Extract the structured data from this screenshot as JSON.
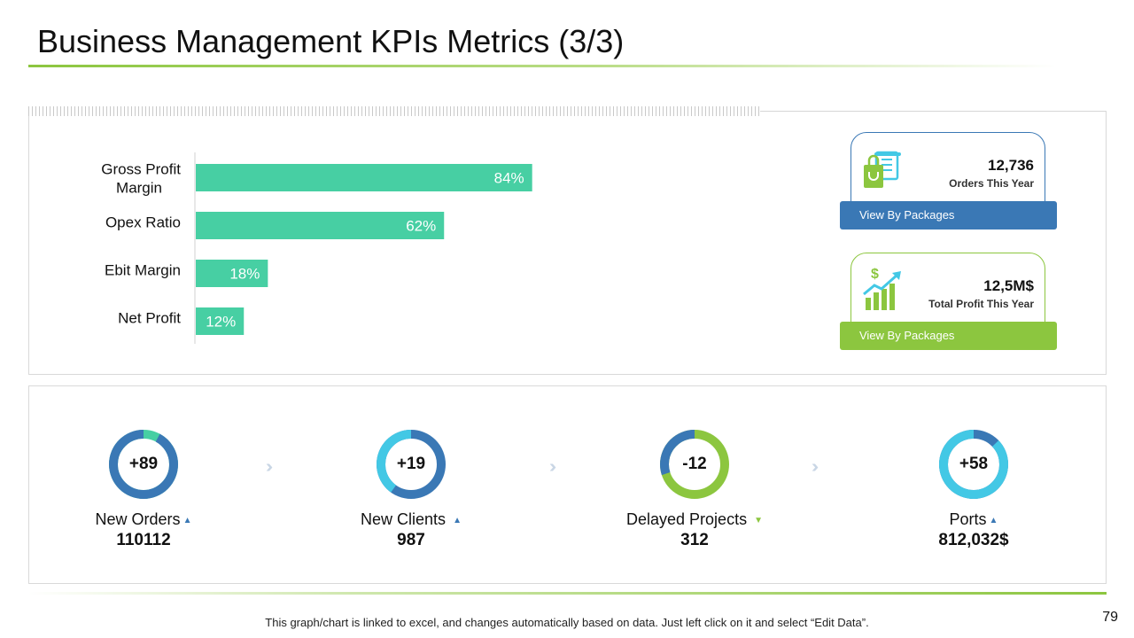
{
  "title": "Business Management KPIs Metrics (3/3)",
  "colors": {
    "bar": "#47cfa3",
    "blue": "#3a78b5",
    "cyan": "#43c8e5",
    "green": "#8cc63f",
    "teal": "#47cfa3"
  },
  "chart_data": {
    "type": "bar",
    "orientation": "horizontal",
    "categories": [
      "Gross Profit Margin",
      "Opex Ratio",
      "Ebit Margin",
      "Net Profit"
    ],
    "values": [
      84,
      62,
      18,
      12
    ],
    "labels": [
      "84%",
      "62%",
      "18%",
      "12%"
    ],
    "xlim": [
      0,
      100
    ],
    "unit": "%",
    "grid": false,
    "title": "",
    "xlabel": "",
    "ylabel": ""
  },
  "cards": [
    {
      "value": "12,736",
      "caption": "Orders This Year",
      "button": "View By Packages",
      "icon": "shopping-receipt-icon"
    },
    {
      "value": "12,5M$",
      "caption": "Total Profit This Year",
      "button": "View By Packages",
      "icon": "profit-growth-icon"
    }
  ],
  "kpis": [
    {
      "ring_value": "+89",
      "label": "New Orders",
      "number": "110112",
      "trend": "up",
      "trend_symbol": "▲",
      "share": 0.92,
      "ring_color": "#3a78b5",
      "rest_color": "#47cfa3"
    },
    {
      "ring_value": "+19",
      "label": "New Clients",
      "number": "987",
      "trend": "up",
      "trend_symbol": "▲",
      "share": 0.4,
      "ring_color": "#43c8e5",
      "rest_color": "#3a78b5"
    },
    {
      "ring_value": "-12",
      "label": "Delayed Projects",
      "number": "312",
      "trend": "down",
      "trend_symbol": "▼",
      "share": 0.3,
      "ring_color": "#3a78b5",
      "rest_color": "#8cc63f"
    },
    {
      "ring_value": "+58",
      "label": "Ports",
      "number": "812,032$",
      "trend": "up",
      "trend_symbol": "▲",
      "share": 0.87,
      "ring_color": "#43c8e5",
      "rest_color": "#3a78b5"
    }
  ],
  "footnote": "This graph/chart is linked to excel, and changes automatically based on data. Just left click on it and select “Edit Data”.",
  "page_number": "79"
}
